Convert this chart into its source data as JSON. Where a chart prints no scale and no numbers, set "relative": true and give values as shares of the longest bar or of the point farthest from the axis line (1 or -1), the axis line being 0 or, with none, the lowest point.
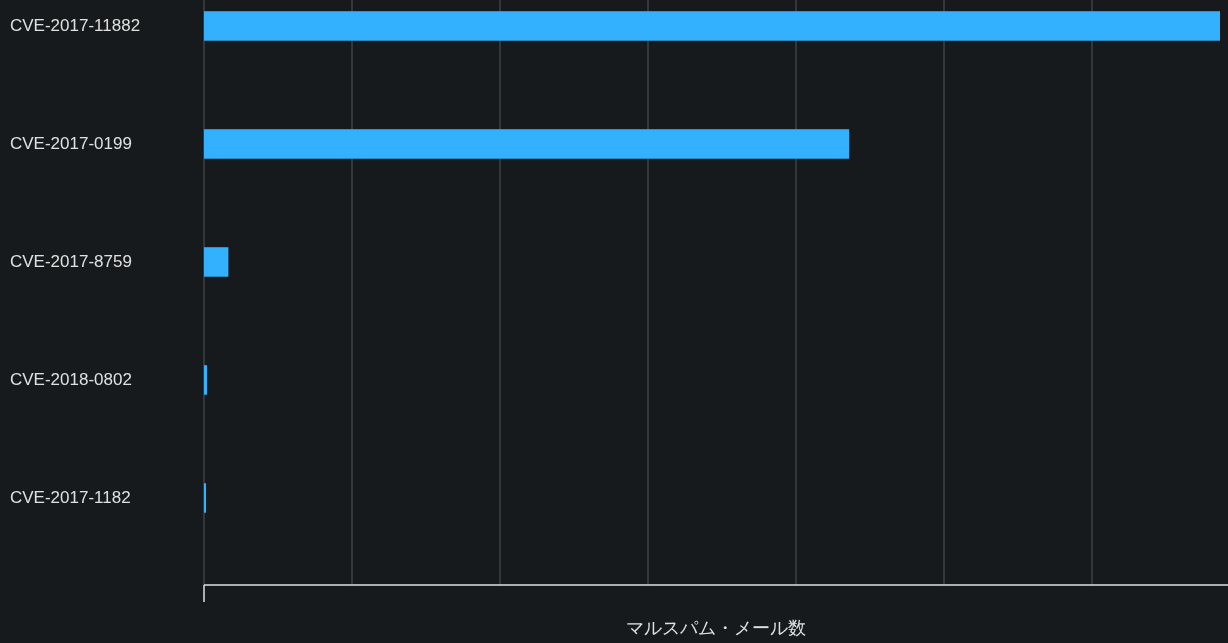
{
  "chart_data": {
    "type": "bar",
    "orientation": "horizontal",
    "relative": true,
    "xlabel": "マルスパム・メール数",
    "categories": [
      "CVE-2017-11882",
      "CVE-2017-0199",
      "CVE-2017-8759",
      "CVE-2018-0802",
      "CVE-2017-1182"
    ],
    "values": [
      1,
      0.635,
      0.024,
      0.003,
      0.002
    ],
    "color": "#33b1ff",
    "grid": "x"
  }
}
